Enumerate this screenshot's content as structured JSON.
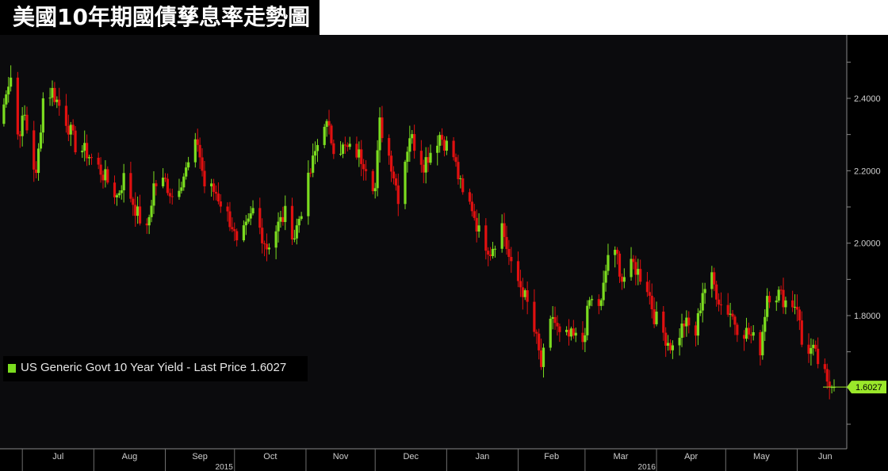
{
  "title": "美國10年期國債孳息率走勢圖",
  "colors": {
    "background": "#000000",
    "plot_background": "#0b0b0d",
    "up_candle": "#7bdc1f",
    "down_candle": "#e01010",
    "axis_text": "#cfcfcf",
    "last_price_tag": "#9be82a"
  },
  "chart_data": {
    "type": "candlestick",
    "legend": {
      "swatch_color": "#7bdc1f",
      "label": "US Generic Govt 10 Year Yield - Last Price 1.6027"
    },
    "last_price_label": "1.6027",
    "last_price": 1.6027,
    "ylim": [
      1.63,
      2.49
    ],
    "y_ticks": [
      "2.4000",
      "2.2000",
      "2.0000",
      "1.8000"
    ],
    "y_tick_values": [
      2.4,
      2.2,
      2.0,
      1.8
    ],
    "x_month_labels": [
      "Jul",
      "Aug",
      "Sep",
      "Oct",
      "Nov",
      "Dec",
      "Jan",
      "Feb",
      "Mar",
      "Apr",
      "May",
      "Jun"
    ],
    "x_year_labels": [
      "2015",
      "2016"
    ],
    "x_axis_span": [
      "2015-06-22",
      "2016-06-17"
    ],
    "keypoints": [
      [
        "2015-06-22",
        2.33
      ],
      [
        "2015-06-24",
        2.43
      ],
      [
        "2015-06-26",
        2.46
      ],
      [
        "2015-06-29",
        2.3
      ],
      [
        "2015-07-02",
        2.35
      ],
      [
        "2015-07-07",
        2.18
      ],
      [
        "2015-07-10",
        2.4
      ],
      [
        "2015-07-14",
        2.42
      ],
      [
        "2015-07-20",
        2.34
      ],
      [
        "2015-07-24",
        2.27
      ],
      [
        "2015-07-29",
        2.25
      ],
      [
        "2015-08-04",
        2.2
      ],
      [
        "2015-08-07",
        2.17
      ],
      [
        "2015-08-11",
        2.13
      ],
      [
        "2015-08-14",
        2.18
      ],
      [
        "2015-08-20",
        2.08
      ],
      [
        "2015-08-24",
        2.03
      ],
      [
        "2015-08-27",
        2.16
      ],
      [
        "2015-09-01",
        2.17
      ],
      [
        "2015-09-04",
        2.13
      ],
      [
        "2015-09-10",
        2.2
      ],
      [
        "2015-09-15",
        2.28
      ],
      [
        "2015-09-18",
        2.16
      ],
      [
        "2015-09-23",
        2.14
      ],
      [
        "2015-09-30",
        2.05
      ],
      [
        "2015-10-02",
        1.99
      ],
      [
        "2015-10-07",
        2.05
      ],
      [
        "2015-10-09",
        2.09
      ],
      [
        "2015-10-15",
        1.99
      ],
      [
        "2015-10-20",
        2.05
      ],
      [
        "2015-10-23",
        2.08
      ],
      [
        "2015-10-27",
        2.02
      ],
      [
        "2015-11-02",
        2.17
      ],
      [
        "2015-11-05",
        2.25
      ],
      [
        "2015-11-09",
        2.34
      ],
      [
        "2015-11-13",
        2.27
      ],
      [
        "2015-11-18",
        2.26
      ],
      [
        "2015-11-23",
        2.25
      ],
      [
        "2015-11-27",
        2.22
      ],
      [
        "2015-12-01",
        2.15
      ],
      [
        "2015-12-03",
        2.33
      ],
      [
        "2015-12-08",
        2.22
      ],
      [
        "2015-12-11",
        2.13
      ],
      [
        "2015-12-16",
        2.3
      ],
      [
        "2015-12-22",
        2.22
      ],
      [
        "2015-12-29",
        2.3
      ],
      [
        "2016-01-04",
        2.24
      ],
      [
        "2016-01-08",
        2.13
      ],
      [
        "2016-01-12",
        2.1
      ],
      [
        "2016-01-15",
        2.03
      ],
      [
        "2016-01-20",
        1.98
      ],
      [
        "2016-01-25",
        2.05
      ],
      [
        "2016-01-29",
        1.93
      ],
      [
        "2016-02-03",
        1.87
      ],
      [
        "2016-02-05",
        1.83
      ],
      [
        "2016-02-09",
        1.73
      ],
      [
        "2016-02-11",
        1.66
      ],
      [
        "2016-02-16",
        1.8
      ],
      [
        "2016-02-19",
        1.74
      ],
      [
        "2016-02-24",
        1.74
      ],
      [
        "2016-02-29",
        1.73
      ],
      [
        "2016-03-03",
        1.84
      ],
      [
        "2016-03-08",
        1.83
      ],
      [
        "2016-03-11",
        1.97
      ],
      [
        "2016-03-15",
        1.96
      ],
      [
        "2016-03-17",
        1.9
      ],
      [
        "2016-03-22",
        1.94
      ],
      [
        "2016-03-28",
        1.88
      ],
      [
        "2016-03-31",
        1.8
      ],
      [
        "2016-04-05",
        1.74
      ],
      [
        "2016-04-08",
        1.71
      ],
      [
        "2016-04-13",
        1.78
      ],
      [
        "2016-04-18",
        1.75
      ],
      [
        "2016-04-21",
        1.87
      ],
      [
        "2016-04-25",
        1.9
      ],
      [
        "2016-04-29",
        1.83
      ],
      [
        "2016-05-03",
        1.81
      ],
      [
        "2016-05-06",
        1.77
      ],
      [
        "2016-05-11",
        1.75
      ],
      [
        "2016-05-16",
        1.71
      ],
      [
        "2016-05-19",
        1.86
      ],
      [
        "2016-05-24",
        1.86
      ],
      [
        "2016-05-27",
        1.84
      ],
      [
        "2016-06-01",
        1.83
      ],
      [
        "2016-06-03",
        1.72
      ],
      [
        "2016-06-08",
        1.7
      ],
      [
        "2016-06-13",
        1.63
      ],
      [
        "2016-06-14",
        1.6027
      ],
      [
        "2016-06-17",
        1.6027
      ]
    ]
  }
}
